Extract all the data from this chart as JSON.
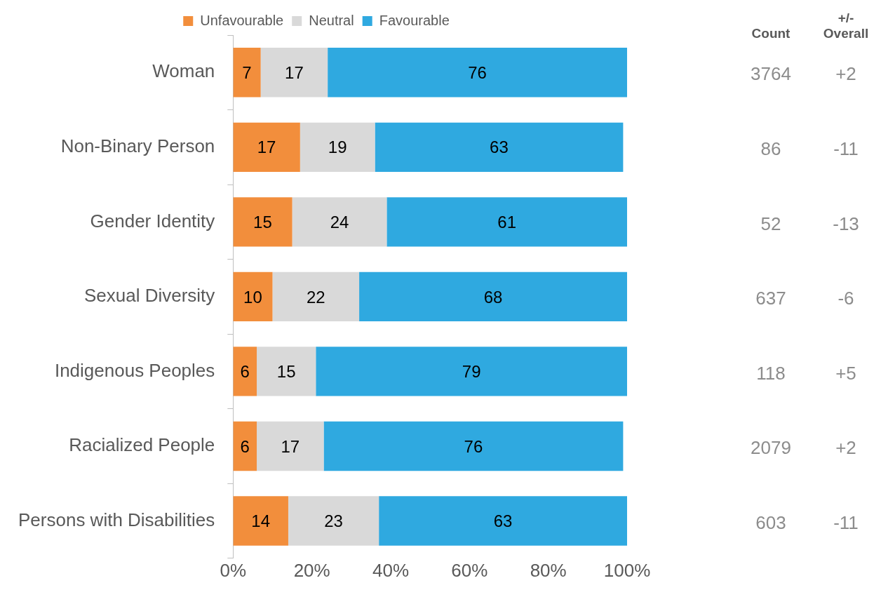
{
  "chart_data": {
    "type": "bar",
    "orientation": "horizontal",
    "stacked": true,
    "data_labels": true,
    "legend": "top",
    "grid": false,
    "categories": [
      "Woman",
      "Non-Binary Person",
      "Gender Identity",
      "Sexual Diversity",
      "Indigenous Peoples",
      "Racialized People",
      "Persons with Disabilities"
    ],
    "series": [
      {
        "name": "Unfavourable",
        "color": "#f28e3c",
        "values": [
          7,
          17,
          15,
          10,
          6,
          6,
          14
        ]
      },
      {
        "name": "Neutral",
        "color": "#d9d9d9",
        "values": [
          17,
          19,
          24,
          22,
          15,
          17,
          23
        ]
      },
      {
        "name": "Favourable",
        "color": "#2fa9e0",
        "values": [
          76,
          63,
          61,
          68,
          79,
          76,
          63
        ]
      }
    ],
    "xlim": [
      0,
      100
    ],
    "xticks": [
      {
        "value": 0,
        "label": "0%"
      },
      {
        "value": 20,
        "label": "20%"
      },
      {
        "value": 40,
        "label": "40%"
      },
      {
        "value": 60,
        "label": "60%"
      },
      {
        "value": 80,
        "label": "80%"
      },
      {
        "value": 100,
        "label": "100%"
      }
    ],
    "annotations": [
      "Count",
      "3764",
      "86",
      "52",
      "637",
      "118",
      "2079",
      "603",
      "+/- Overall",
      "+2",
      "-11",
      "-13",
      "-6",
      "+5",
      "+2",
      "-11"
    ]
  }
}
